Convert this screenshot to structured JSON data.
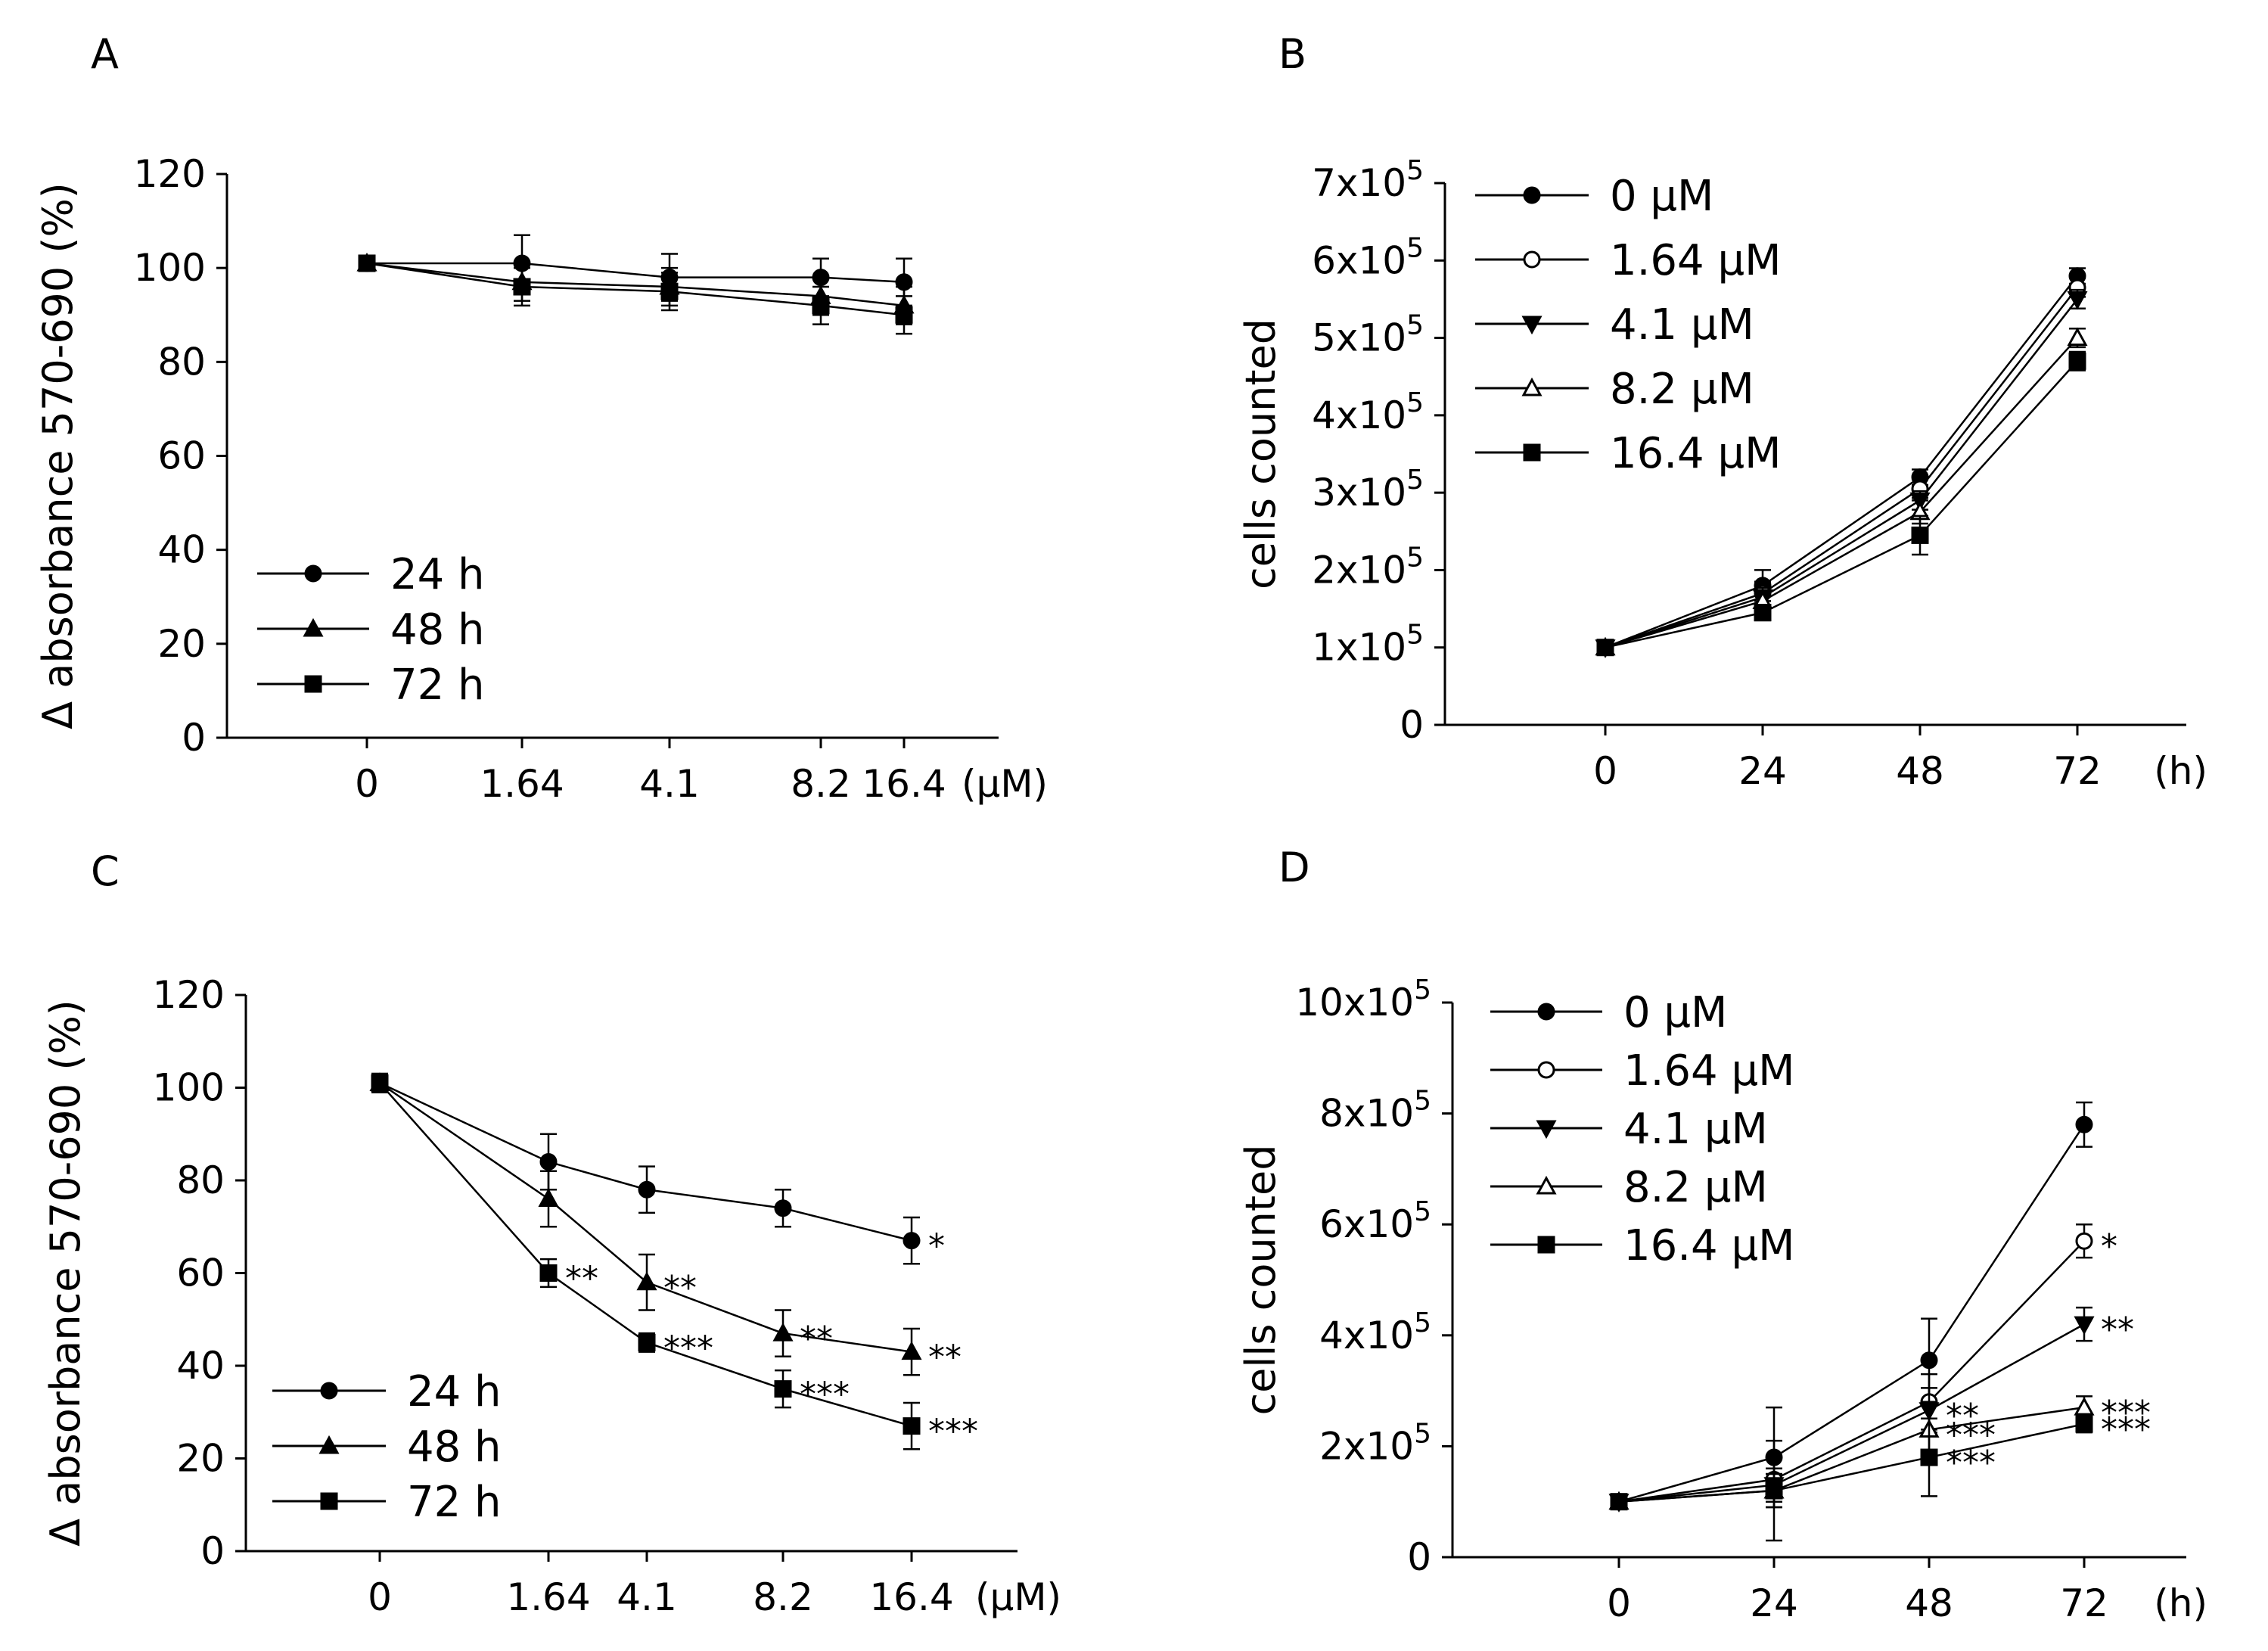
{
  "chart_data": [
    {
      "panel": "A",
      "type": "line",
      "ylabel": "Δ absorbance 570-690 (%)",
      "x_unit": "(μM)",
      "categories": [
        "0",
        "1.64",
        "4.1",
        "8.2",
        "16.4"
      ],
      "ylim": [
        0,
        120
      ],
      "yticks": [
        "0",
        "20",
        "40",
        "60",
        "80",
        "100",
        "120"
      ],
      "series": [
        {
          "name": "24 h",
          "marker": "circle",
          "values": [
            101,
            101,
            98,
            98,
            97
          ],
          "errors": [
            1,
            6,
            5,
            4,
            5
          ],
          "sig": [
            "",
            "",
            "",
            "",
            ""
          ]
        },
        {
          "name": "48 h",
          "marker": "triangle",
          "values": [
            101,
            97,
            96,
            94,
            92
          ],
          "errors": [
            1,
            4,
            4,
            4,
            4
          ],
          "sig": [
            "",
            "",
            "",
            "",
            ""
          ]
        },
        {
          "name": "72 h",
          "marker": "square",
          "values": [
            101,
            96,
            95,
            92,
            90
          ],
          "errors": [
            1,
            4,
            4,
            4,
            4
          ],
          "sig": [
            "",
            "",
            "",
            "",
            ""
          ]
        }
      ],
      "legend": "bottom-left"
    },
    {
      "panel": "B",
      "type": "line",
      "ylabel": "cells counted",
      "x_unit": "(h)",
      "categories": [
        "0",
        "24",
        "48",
        "72"
      ],
      "ylim": [
        0,
        700000
      ],
      "yticks": [
        {
          "mantissa": "0",
          "exp": ""
        },
        {
          "mantissa": "1x10",
          "exp": "5"
        },
        {
          "mantissa": "2x10",
          "exp": "5"
        },
        {
          "mantissa": "3x10",
          "exp": "5"
        },
        {
          "mantissa": "4x10",
          "exp": "5"
        },
        {
          "mantissa": "5x10",
          "exp": "5"
        },
        {
          "mantissa": "6x10",
          "exp": "5"
        },
        {
          "mantissa": "7x10",
          "exp": "5"
        }
      ],
      "series": [
        {
          "name": "0 μM",
          "marker": "filled-circle",
          "values": [
            100000,
            180000,
            320000,
            580000
          ],
          "errors": [
            3000,
            20000,
            10000,
            10000
          ],
          "sig": [
            "",
            "",
            "",
            ""
          ]
        },
        {
          "name": "1.64  μM",
          "marker": "open-circle",
          "values": [
            100000,
            170000,
            305000,
            565000
          ],
          "errors": [
            3000,
            15000,
            12000,
            12000
          ],
          "sig": [
            "",
            "",
            "",
            ""
          ]
        },
        {
          "name": "4.1 μM",
          "marker": "filled-triangle-down",
          "values": [
            100000,
            165000,
            290000,
            550000
          ],
          "errors": [
            3000,
            12000,
            12000,
            12000
          ],
          "sig": [
            "",
            "",
            "",
            ""
          ]
        },
        {
          "name": "8.2 μM",
          "marker": "open-triangle",
          "values": [
            100000,
            160000,
            275000,
            500000
          ],
          "errors": [
            3000,
            12000,
            15000,
            12000
          ],
          "sig": [
            "",
            "",
            "",
            ""
          ]
        },
        {
          "name": "16.4 μM",
          "marker": "filled-square",
          "values": [
            100000,
            145000,
            245000,
            470000
          ],
          "errors": [
            3000,
            10000,
            25000,
            12000
          ],
          "sig": [
            "",
            "",
            "",
            ""
          ]
        }
      ],
      "legend": "top-left"
    },
    {
      "panel": "C",
      "type": "line",
      "ylabel": "Δ absorbance 570-690 (%)",
      "x_unit": "(μM)",
      "categories": [
        "0",
        "1.64",
        "4.1",
        "8.2",
        "16.4"
      ],
      "ylim": [
        0,
        120
      ],
      "yticks": [
        "0",
        "20",
        "40",
        "60",
        "80",
        "100",
        "120"
      ],
      "series": [
        {
          "name": "24 h",
          "marker": "circle",
          "values": [
            101,
            84,
            78,
            74,
            67
          ],
          "errors": [
            2,
            6,
            5,
            4,
            5
          ],
          "sig": [
            "",
            "",
            "",
            "",
            "*"
          ]
        },
        {
          "name": "48 h",
          "marker": "triangle",
          "values": [
            101,
            76,
            58,
            47,
            43
          ],
          "errors": [
            2,
            6,
            6,
            5,
            5
          ],
          "sig": [
            "",
            "",
            "**",
            "**",
            "**"
          ]
        },
        {
          "name": "72 h",
          "marker": "square",
          "values": [
            101,
            60,
            45,
            35,
            27
          ],
          "errors": [
            2,
            3,
            2,
            4,
            5
          ],
          "sig": [
            "",
            "**",
            "***",
            "***",
            "***"
          ]
        }
      ],
      "legend": "bottom-left"
    },
    {
      "panel": "D",
      "type": "line",
      "ylabel": "cells counted",
      "x_unit": "(h)",
      "categories": [
        "0",
        "24",
        "48",
        "72"
      ],
      "ylim": [
        0,
        1000000
      ],
      "yticks": [
        {
          "mantissa": "0",
          "exp": ""
        },
        {
          "mantissa": "2x10",
          "exp": "5"
        },
        {
          "mantissa": "4x10",
          "exp": "5"
        },
        {
          "mantissa": "6x10",
          "exp": "5"
        },
        {
          "mantissa": "8x10",
          "exp": "5"
        },
        {
          "mantissa": "10x10",
          "exp": "5"
        }
      ],
      "series": [
        {
          "name": "0 μM",
          "marker": "filled-circle",
          "values": [
            100000,
            180000,
            355000,
            780000
          ],
          "errors": [
            3000,
            90000,
            75000,
            40000
          ],
          "sig": [
            "",
            "",
            "",
            ""
          ]
        },
        {
          "name": "1.64 μM",
          "marker": "open-circle",
          "values": [
            100000,
            140000,
            280000,
            570000
          ],
          "errors": [
            3000,
            40000,
            50000,
            30000
          ],
          "sig": [
            "",
            "",
            "",
            "*"
          ]
        },
        {
          "name": "4.1 μM",
          "marker": "filled-triangle-down",
          "values": [
            100000,
            130000,
            265000,
            420000
          ],
          "errors": [
            3000,
            30000,
            40000,
            30000
          ],
          "sig": [
            "",
            "",
            "**",
            "**"
          ]
        },
        {
          "name": "8.2 μM",
          "marker": "open-triangle",
          "values": [
            100000,
            120000,
            230000,
            270000
          ],
          "errors": [
            3000,
            30000,
            50000,
            20000
          ],
          "sig": [
            "",
            "",
            "***",
            "***"
          ]
        },
        {
          "name": "16.4 μM",
          "marker": "filled-square",
          "values": [
            100000,
            120000,
            180000,
            240000
          ],
          "errors": [
            3000,
            90000,
            70000,
            15000
          ],
          "sig": [
            "",
            "",
            "***",
            "***"
          ]
        }
      ],
      "legend": "top-left"
    }
  ]
}
